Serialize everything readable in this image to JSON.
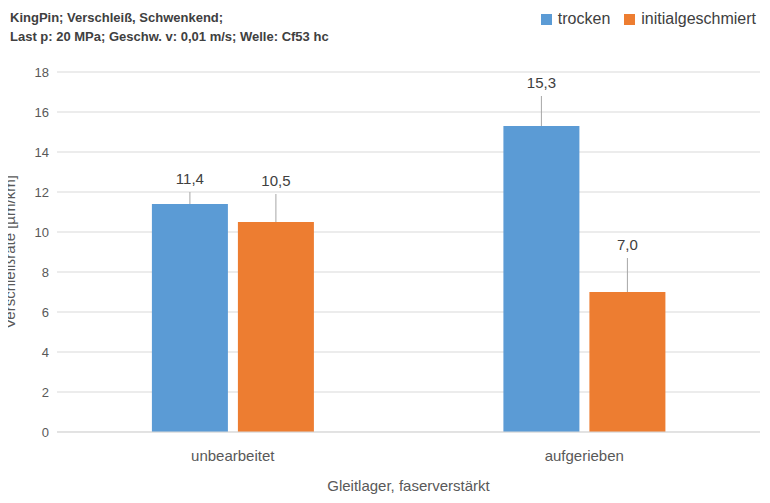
{
  "chart_data": {
    "type": "bar",
    "title": "KingPin; Verschleiß, Schwenkend;",
    "subtitle": "Last p: 20 MPa; Geschw. v: 0,01 m/s; Welle: Cf53 hc",
    "x_label": "Gleitlager, faserverstärkt",
    "y_label": "Verschleißrate [µm/km]",
    "categories": [
      "unbearbeitet",
      "aufgerieben"
    ],
    "series": [
      {
        "name": "trocken",
        "color": "#5b9bd5",
        "values": [
          11.4,
          15.3
        ],
        "value_labels": [
          "11,4",
          "15,3"
        ],
        "error": [
          0.6,
          1.5
        ]
      },
      {
        "name": "initialgeschmiert",
        "color": "#ed7d31",
        "values": [
          10.5,
          7.0
        ],
        "value_labels": [
          "10,5",
          "7,0"
        ],
        "error": [
          1.4,
          1.7
        ]
      }
    ],
    "ylim": [
      0,
      18
    ],
    "yticks": [
      0,
      2,
      4,
      6,
      8,
      10,
      12,
      14,
      16,
      18
    ],
    "grid": true,
    "legend": "top-right",
    "data_labels": true
  }
}
